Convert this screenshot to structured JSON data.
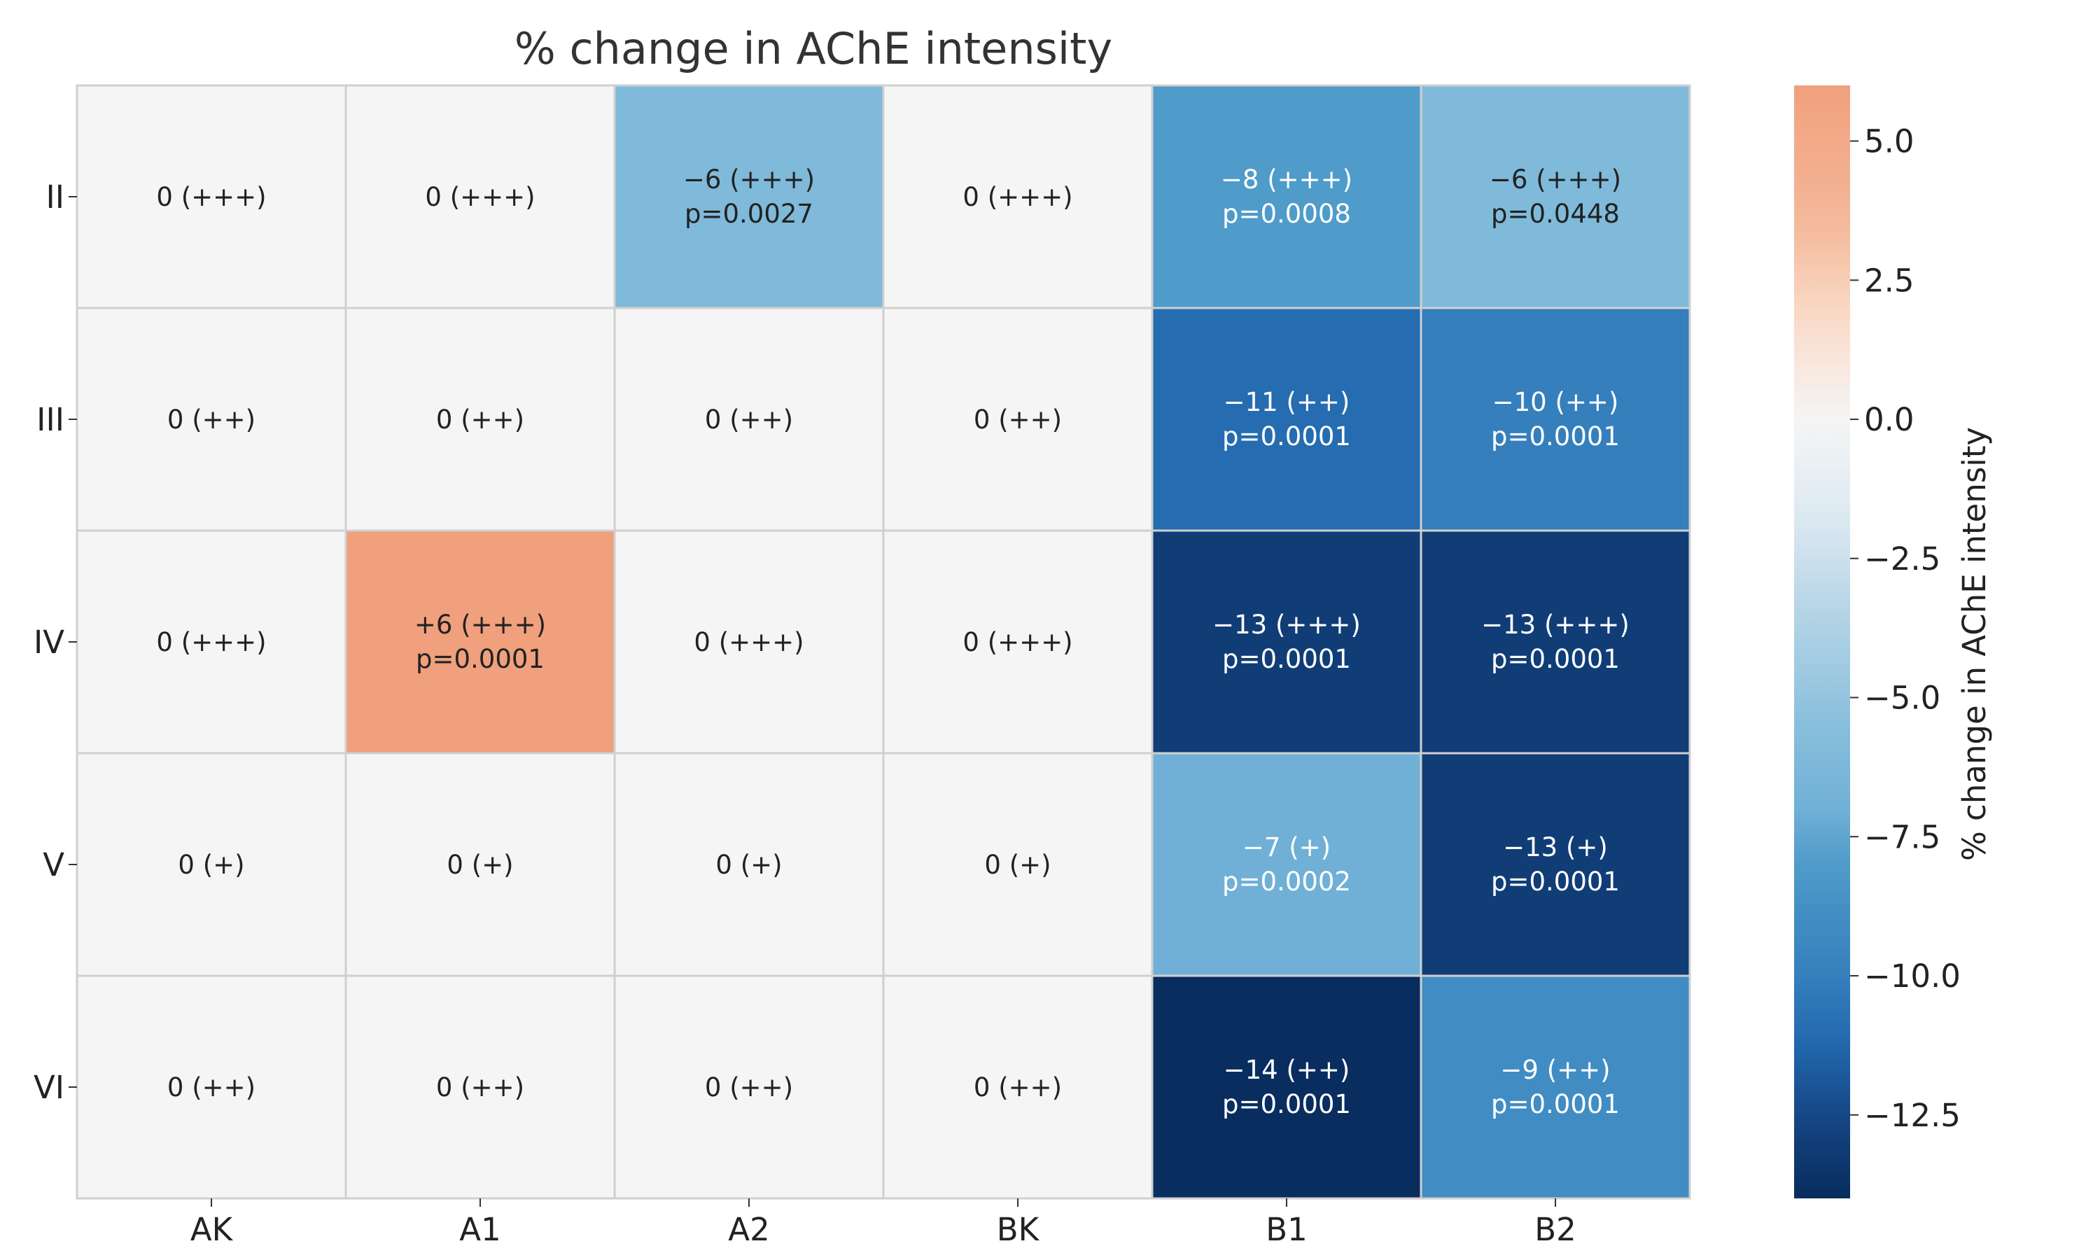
{
  "chart_data": {
    "type": "heatmap",
    "title": "% change in AChE intensity",
    "x_labels": [
      "AK",
      "A1",
      "A2",
      "BK",
      "B1",
      "B2"
    ],
    "y_labels": [
      "II",
      "III",
      "IV",
      "V",
      "VI"
    ],
    "values": [
      [
        0,
        0,
        -6,
        0,
        -8,
        -6
      ],
      [
        0,
        0,
        0,
        0,
        -11,
        -10
      ],
      [
        0,
        6,
        0,
        0,
        -13,
        -13
      ],
      [
        0,
        0,
        0,
        0,
        -7,
        -13
      ],
      [
        0,
        0,
        0,
        0,
        -14,
        -9
      ]
    ],
    "annotations": [
      [
        [
          "0 (+++)"
        ],
        [
          "0 (+++)"
        ],
        [
          "−6 (+++)",
          "p=0.0027"
        ],
        [
          "0 (+++)"
        ],
        [
          "−8 (+++)",
          "p=0.0008"
        ],
        [
          "−6 (+++)",
          "p=0.0448"
        ]
      ],
      [
        [
          "0 (++)"
        ],
        [
          "0 (++)"
        ],
        [
          "0 (++)"
        ],
        [
          "0 (++)"
        ],
        [
          "−11 (++)",
          "p=0.0001"
        ],
        [
          "−10 (++)",
          "p=0.0001"
        ]
      ],
      [
        [
          "0 (+++)"
        ],
        [
          "+6 (+++)",
          "p=0.0001"
        ],
        [
          "0 (+++)"
        ],
        [
          "0 (+++)"
        ],
        [
          "−13 (+++)",
          "p=0.0001"
        ],
        [
          "−13 (+++)",
          "p=0.0001"
        ]
      ],
      [
        [
          "0 (+)"
        ],
        [
          "0 (+)"
        ],
        [
          "0 (+)"
        ],
        [
          "0 (+)"
        ],
        [
          "−7 (+)",
          "p=0.0002"
        ],
        [
          "−13 (+)",
          "p=0.0001"
        ]
      ],
      [
        [
          "0 (++)"
        ],
        [
          "0 (++)"
        ],
        [
          "0 (++)"
        ],
        [
          "0 (++)"
        ],
        [
          "−14 (++)",
          "p=0.0001"
        ],
        [
          "−9 (++)",
          "p=0.0001"
        ]
      ]
    ],
    "colorbar": {
      "label": "% change in AChE intensity",
      "range": [
        -14,
        6
      ],
      "ticks": [
        5.0,
        2.5,
        0.0,
        -2.5,
        -5.0,
        -7.5,
        -10.0,
        -12.5
      ],
      "tick_labels": [
        "5.0",
        "2.5",
        "0.0",
        "−2.5",
        "−5.0",
        "−7.5",
        "−10.0",
        "−12.5"
      ],
      "colormap": "RdBu_r (diverging, centered at 0)"
    },
    "colors": {
      "zero": "#f5f5f5",
      "positive_max": "#f0a07d",
      "negative_max": "#0a2f5e",
      "grid": "#d0d0d0"
    }
  }
}
